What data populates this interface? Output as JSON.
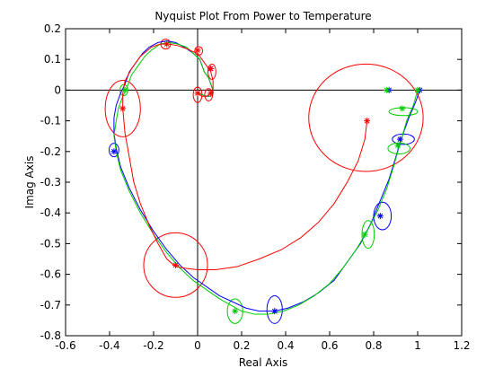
{
  "chart_data": {
    "type": "line",
    "title": "Nyquist Plot From Power to Temperature",
    "xlabel": "Real Axis",
    "ylabel": "Imag Axis",
    "xlim": [
      -0.6,
      1.2
    ],
    "ylim": [
      -0.8,
      0.2
    ],
    "xticks": [
      "-0.6",
      "-0.4",
      "-0.2",
      "0",
      "0.2",
      "0.4",
      "0.6",
      "0.8",
      "1",
      "1.2"
    ],
    "yticks": [
      "0.2",
      "0.1",
      "0",
      "-0.1",
      "-0.2",
      "-0.3",
      "-0.4",
      "-0.5",
      "-0.6",
      "-0.7",
      "-0.8"
    ],
    "grid": false,
    "zero_lines": true,
    "series": [
      {
        "color": "#0000ff",
        "x": [
          1.01,
          0.99,
          0.96,
          0.94,
          0.92,
          0.9,
          0.87,
          0.83,
          0.79,
          0.74,
          0.68,
          0.62,
          0.55,
          0.48,
          0.41,
          0.35,
          0.28,
          0.22,
          0.16,
          0.1,
          0.04,
          -0.02,
          -0.08,
          -0.14,
          -0.2,
          -0.26,
          -0.31,
          -0.35,
          -0.37,
          -0.38,
          -0.38,
          -0.37,
          -0.35,
          -0.33,
          -0.31,
          -0.28,
          -0.25,
          -0.22,
          -0.18,
          -0.14,
          -0.1,
          -0.06,
          -0.02,
          0.01,
          0.02,
          0.03,
          0.05,
          0.06,
          0.07,
          0.07,
          0.06,
          0.04,
          0.02,
          0.01,
          0.0,
          0.0
        ],
        "y": [
          0.0,
          -0.04,
          -0.09,
          -0.13,
          -0.17,
          -0.22,
          -0.29,
          -0.36,
          -0.43,
          -0.5,
          -0.56,
          -0.62,
          -0.66,
          -0.69,
          -0.71,
          -0.72,
          -0.72,
          -0.71,
          -0.69,
          -0.67,
          -0.64,
          -0.61,
          -0.57,
          -0.52,
          -0.46,
          -0.39,
          -0.32,
          -0.25,
          -0.19,
          -0.14,
          -0.09,
          -0.05,
          -0.01,
          0.02,
          0.06,
          0.09,
          0.12,
          0.14,
          0.155,
          0.16,
          0.155,
          0.14,
          0.12,
          0.1,
          0.08,
          0.06,
          0.04,
          0.02,
          0.0,
          -0.01,
          -0.02,
          -0.02,
          -0.015,
          -0.01,
          -0.005,
          0.0
        ]
      },
      {
        "color": "#00cc00",
        "x": [
          1.0,
          0.98,
          0.95,
          0.93,
          0.91,
          0.89,
          0.86,
          0.82,
          0.77,
          0.72,
          0.66,
          0.6,
          0.53,
          0.46,
          0.39,
          0.32,
          0.26,
          0.2,
          0.15,
          0.1,
          0.04,
          -0.02,
          -0.08,
          -0.14,
          -0.2,
          -0.26,
          -0.31,
          -0.35,
          -0.37,
          -0.38,
          -0.37,
          -0.36,
          -0.34,
          -0.32,
          -0.3,
          -0.27,
          -0.24,
          -0.21,
          -0.17,
          -0.13,
          -0.09,
          -0.05,
          -0.02,
          0.01,
          0.02,
          0.03,
          0.05,
          0.06,
          0.07,
          0.07,
          0.06,
          0.04,
          0.02,
          0.01,
          0.0,
          0.0
        ],
        "y": [
          0.0,
          -0.05,
          -0.1,
          -0.15,
          -0.2,
          -0.25,
          -0.32,
          -0.39,
          -0.46,
          -0.52,
          -0.58,
          -0.63,
          -0.67,
          -0.7,
          -0.72,
          -0.73,
          -0.73,
          -0.72,
          -0.7,
          -0.68,
          -0.65,
          -0.62,
          -0.58,
          -0.53,
          -0.47,
          -0.4,
          -0.33,
          -0.26,
          -0.2,
          -0.15,
          -0.1,
          -0.06,
          -0.02,
          0.01,
          0.05,
          0.08,
          0.11,
          0.13,
          0.15,
          0.155,
          0.15,
          0.14,
          0.12,
          0.1,
          0.08,
          0.06,
          0.04,
          0.02,
          0.0,
          -0.01,
          -0.02,
          -0.02,
          -0.015,
          -0.01,
          -0.005,
          0.0
        ]
      },
      {
        "color": "#ff0000",
        "x": [
          0.77,
          0.76,
          0.73,
          0.68,
          0.62,
          0.55,
          0.47,
          0.38,
          0.28,
          0.18,
          0.08,
          0.0,
          -0.06,
          -0.1,
          -0.14,
          -0.18,
          -0.22,
          -0.26,
          -0.29,
          -0.31,
          -0.33,
          -0.34,
          -0.34,
          -0.33,
          -0.3,
          -0.26,
          -0.21,
          -0.17,
          -0.13,
          -0.09,
          -0.05,
          -0.02,
          0.0,
          0.02,
          0.04,
          0.06,
          0.07,
          0.07,
          0.06,
          0.04,
          0.02,
          0.01,
          0.0,
          0.0
        ],
        "y": [
          -0.1,
          -0.16,
          -0.23,
          -0.3,
          -0.37,
          -0.43,
          -0.48,
          -0.52,
          -0.55,
          -0.575,
          -0.585,
          -0.585,
          -0.58,
          -0.575,
          -0.55,
          -0.5,
          -0.44,
          -0.37,
          -0.3,
          -0.22,
          -0.14,
          -0.06,
          -0.01,
          0.03,
          0.07,
          0.11,
          0.14,
          0.15,
          0.15,
          0.145,
          0.135,
          0.125,
          0.12,
          0.1,
          0.08,
          0.06,
          0.03,
          0.0,
          -0.01,
          -0.02,
          -0.02,
          -0.015,
          -0.01,
          0.0
        ]
      }
    ],
    "markers": [
      {
        "color": "#0000ff",
        "x": 1.01,
        "y": 0.0
      },
      {
        "color": "#0000ff",
        "x": 0.87,
        "y": 0.0
      },
      {
        "color": "#0000ff",
        "x": 0.92,
        "y": -0.16
      },
      {
        "color": "#0000ff",
        "x": 0.83,
        "y": -0.41
      },
      {
        "color": "#0000ff",
        "x": 0.35,
        "y": -0.72
      },
      {
        "color": "#0000ff",
        "x": -0.38,
        "y": -0.2
      },
      {
        "color": "#0000ff",
        "x": 0.06,
        "y": 0.07
      },
      {
        "color": "#00cc00",
        "x": 1.0,
        "y": 0.0
      },
      {
        "color": "#00cc00",
        "x": 0.86,
        "y": 0.0
      },
      {
        "color": "#00cc00",
        "x": 0.93,
        "y": -0.06
      },
      {
        "color": "#00cc00",
        "x": 0.91,
        "y": -0.18
      },
      {
        "color": "#00cc00",
        "x": 0.76,
        "y": -0.47
      },
      {
        "color": "#00cc00",
        "x": 0.17,
        "y": -0.72
      },
      {
        "color": "#00cc00",
        "x": -0.33,
        "y": 0.0
      },
      {
        "color": "#ff0000",
        "x": 0.77,
        "y": -0.1
      },
      {
        "color": "#ff0000",
        "x": -0.1,
        "y": -0.57
      },
      {
        "color": "#ff0000",
        "x": -0.34,
        "y": -0.06
      },
      {
        "color": "#ff0000",
        "x": -0.14,
        "y": 0.15
      },
      {
        "color": "#ff0000",
        "x": 0.0,
        "y": 0.13
      },
      {
        "color": "#ff0000",
        "x": 0.06,
        "y": 0.07
      },
      {
        "color": "#ff0000",
        "x": 0.06,
        "y": -0.01
      },
      {
        "color": "#ff0000",
        "x": 0.0,
        "y": -0.01
      }
    ],
    "ellipses": [
      {
        "color": "#ff0000",
        "cx": 0.765,
        "cy": -0.09,
        "rx": 0.26,
        "ry": 0.175
      },
      {
        "color": "#ff0000",
        "cx": -0.1,
        "cy": -0.57,
        "rx": 0.145,
        "ry": 0.105
      },
      {
        "color": "#ff0000",
        "cx": -0.34,
        "cy": -0.06,
        "rx": 0.08,
        "ry": 0.092
      },
      {
        "color": "#ff0000",
        "cx": -0.145,
        "cy": 0.15,
        "rx": 0.022,
        "ry": 0.016
      },
      {
        "color": "#ff0000",
        "cx": 0.005,
        "cy": 0.128,
        "rx": 0.018,
        "ry": 0.014
      },
      {
        "color": "#ff0000",
        "cx": 0.065,
        "cy": 0.06,
        "rx": 0.018,
        "ry": 0.025
      },
      {
        "color": "#ff0000",
        "cx": 0.05,
        "cy": -0.015,
        "rx": 0.018,
        "ry": 0.02
      },
      {
        "color": "#ff0000",
        "cx": 0.0,
        "cy": -0.015,
        "rx": 0.02,
        "ry": 0.025
      },
      {
        "color": "#0000ff",
        "cx": -0.38,
        "cy": -0.195,
        "rx": 0.022,
        "ry": 0.022
      },
      {
        "color": "#0000ff",
        "cx": 0.35,
        "cy": -0.715,
        "rx": 0.035,
        "ry": 0.045
      },
      {
        "color": "#0000ff",
        "cx": 0.84,
        "cy": -0.41,
        "rx": 0.04,
        "ry": 0.045
      },
      {
        "color": "#0000ff",
        "cx": 0.935,
        "cy": -0.16,
        "rx": 0.05,
        "ry": 0.017
      },
      {
        "color": "#00cc00",
        "cx": 0.17,
        "cy": -0.72,
        "rx": 0.035,
        "ry": 0.04
      },
      {
        "color": "#00cc00",
        "cx": 0.775,
        "cy": -0.47,
        "rx": 0.028,
        "ry": 0.045
      },
      {
        "color": "#00cc00",
        "cx": 0.935,
        "cy": -0.07,
        "rx": 0.065,
        "ry": 0.013
      },
      {
        "color": "#00cc00",
        "cx": 0.915,
        "cy": -0.19,
        "rx": 0.05,
        "ry": 0.018
      },
      {
        "color": "#00cc00",
        "cx": -0.335,
        "cy": 0.0,
        "rx": 0.018,
        "ry": 0.018
      }
    ]
  }
}
